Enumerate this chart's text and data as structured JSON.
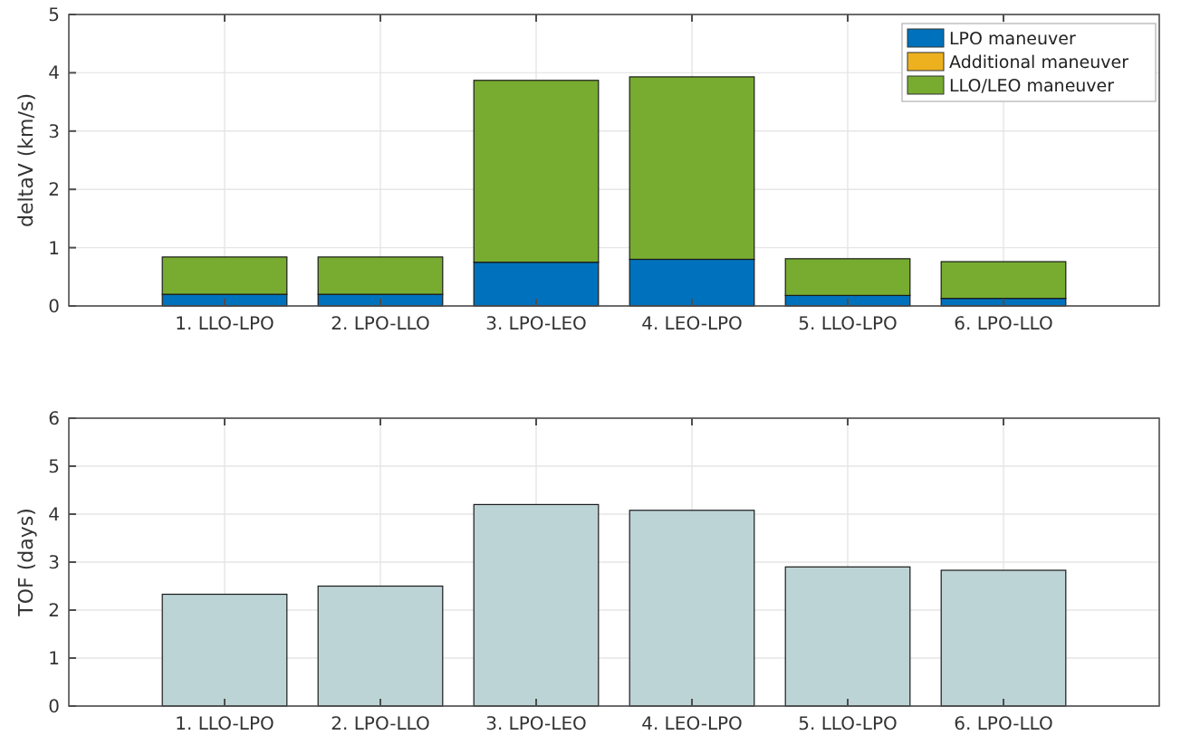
{
  "chart_data": [
    {
      "type": "bar",
      "stacked": true,
      "ylabel": "deltaV (km/s)",
      "categories": [
        "1. LLO-LPO",
        "2. LPO-LLO",
        "3. LPO-LEO",
        "4. LEO-LPO",
        "5. LLO-LPO",
        "6. LPO-LLO"
      ],
      "series": [
        {
          "name": "LPO maneuver",
          "color": "#0072bd",
          "values": [
            0.2,
            0.2,
            0.75,
            0.8,
            0.18,
            0.13
          ]
        },
        {
          "name": "Additional maneuver",
          "color": "#edb120",
          "values": [
            0,
            0,
            0,
            0,
            0,
            0
          ]
        },
        {
          "name": "LLO/LEO maneuver",
          "color": "#77ac30",
          "values": [
            0.64,
            0.64,
            3.12,
            3.13,
            0.63,
            0.63
          ]
        }
      ],
      "ylim": [
        0,
        5
      ],
      "yticks": [
        0,
        1,
        2,
        3,
        4,
        5
      ],
      "grid": true,
      "legend": "top right"
    },
    {
      "type": "bar",
      "ylabel": "TOF (days)",
      "categories": [
        "1. LLO-LPO",
        "2. LPO-LLO",
        "3. LPO-LEO",
        "4. LEO-LPO",
        "5. LLO-LPO",
        "6. LPO-LLO"
      ],
      "series": [
        {
          "color": "#bcd4d6",
          "values": [
            2.33,
            2.5,
            4.2,
            4.08,
            2.9,
            2.83
          ]
        }
      ],
      "ylim": [
        0,
        6
      ],
      "yticks": [
        0,
        1,
        2,
        3,
        4,
        5,
        6
      ],
      "grid": true
    }
  ]
}
